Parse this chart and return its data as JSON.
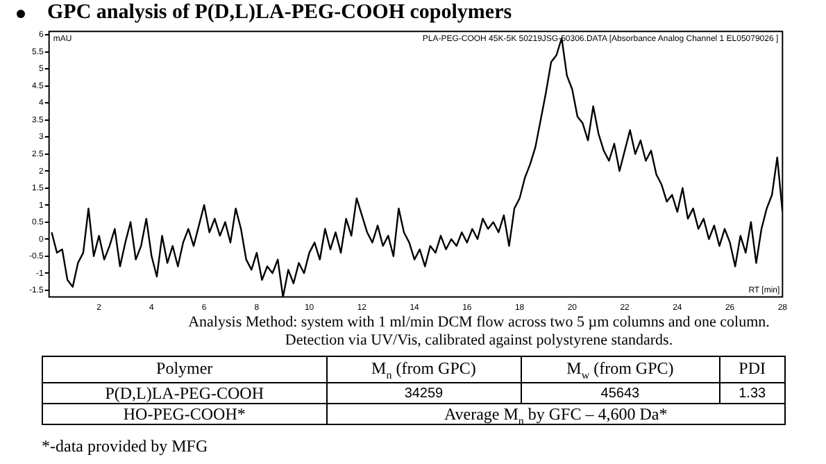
{
  "chart_data": {
    "type": "line",
    "title": "GPC analysis of P(D,L)LA-PEG-COOH copolymers",
    "xlabel": "RT [min]",
    "ylabel": "mAU",
    "annotations": [
      "PLA-PEG-COOH 45K-5K 50219JSG-50306.DATA [Absorbance Analog Channel 1 EL05079026 ]",
      "Analysis Method: system with 1 ml/min DCM flow across two 5 µm columns and one column. Detection via UV/Vis, calibrated against polystyrene standards.",
      "Polymer",
      "M$_{n}$ (from GPC)",
      "M$_{w}$ (from GPC)",
      "PDI",
      "P(D,L)LA-PEG-COOH",
      "34259",
      "45643",
      "1.33",
      "HO-PEG-COOH*",
      "Average M$_{n}$ by GFC –  4,600 Da*",
      "*-data provided by MFG"
    ],
    "x": [
      0.2,
      0.4,
      0.6,
      0.8,
      1.0,
      1.2,
      1.4,
      1.6,
      1.8,
      2.0,
      2.2,
      2.4,
      2.6,
      2.8,
      3.0,
      3.2,
      3.4,
      3.6,
      3.8,
      4.0,
      4.2,
      4.4,
      4.6,
      4.8,
      5.0,
      5.2,
      5.4,
      5.6,
      5.8,
      6.0,
      6.2,
      6.4,
      6.6,
      6.8,
      7.0,
      7.2,
      7.4,
      7.6,
      7.8,
      8.0,
      8.2,
      8.4,
      8.6,
      8.8,
      9.0,
      9.2,
      9.4,
      9.6,
      9.8,
      10.0,
      10.2,
      10.4,
      10.6,
      10.8,
      11.0,
      11.2,
      11.4,
      11.6,
      11.8,
      12.0,
      12.2,
      12.4,
      12.6,
      12.8,
      13.0,
      13.2,
      13.4,
      13.6,
      13.8,
      14.0,
      14.2,
      14.4,
      14.6,
      14.8,
      15.0,
      15.2,
      15.4,
      15.6,
      15.8,
      16.0,
      16.2,
      16.4,
      16.6,
      16.8,
      17.0,
      17.2,
      17.4,
      17.6,
      17.8,
      18.0,
      18.2,
      18.4,
      18.6,
      18.8,
      19.0,
      19.2,
      19.4,
      19.6,
      19.8,
      20.0,
      20.2,
      20.4,
      20.6,
      20.8,
      21.0,
      21.2,
      21.4,
      21.6,
      21.8,
      22.0,
      22.2,
      22.4,
      22.6,
      22.8,
      23.0,
      23.2,
      23.4,
      23.6,
      23.8,
      24.0,
      24.2,
      24.4,
      24.6,
      24.8,
      25.0,
      25.2,
      25.4,
      25.6,
      25.8,
      26.0,
      26.2,
      26.4,
      26.6,
      26.8,
      27.0,
      27.2,
      27.4,
      27.6,
      27.8,
      28.0
    ],
    "series": [
      {
        "color": "#000000",
        "values": [
          0.2,
          -0.4,
          -0.3,
          -1.2,
          -1.4,
          -0.7,
          -0.4,
          0.9,
          -0.5,
          0.1,
          -0.6,
          -0.2,
          0.3,
          -0.8,
          -0.1,
          0.5,
          -0.6,
          -0.2,
          0.6,
          -0.5,
          -1.1,
          0.1,
          -0.7,
          -0.2,
          -0.8,
          -0.1,
          0.3,
          -0.2,
          0.4,
          1.0,
          0.2,
          0.6,
          0.1,
          0.5,
          -0.1,
          0.9,
          0.3,
          -0.6,
          -0.9,
          -0.4,
          -1.2,
          -0.8,
          -1.0,
          -0.6,
          -1.7,
          -0.9,
          -1.3,
          -0.7,
          -1.0,
          -0.4,
          -0.1,
          -0.6,
          0.3,
          -0.3,
          0.2,
          -0.4,
          0.6,
          0.1,
          1.2,
          0.7,
          0.2,
          -0.1,
          0.4,
          -0.2,
          0.1,
          -0.5,
          0.9,
          0.2,
          -0.1,
          -0.6,
          -0.3,
          -0.8,
          -0.2,
          -0.4,
          0.1,
          -0.3,
          0.0,
          -0.2,
          0.2,
          -0.1,
          0.3,
          0.0,
          0.6,
          0.3,
          0.5,
          0.2,
          0.7,
          -0.2,
          0.9,
          1.2,
          1.8,
          2.2,
          2.7,
          3.5,
          4.3,
          5.2,
          5.4,
          5.9,
          4.8,
          4.4,
          3.6,
          3.4,
          2.9,
          3.9,
          3.1,
          2.6,
          2.3,
          2.8,
          2.0,
          2.6,
          3.2,
          2.5,
          2.9,
          2.3,
          2.6,
          1.9,
          1.6,
          1.1,
          1.3,
          0.8,
          1.5,
          0.6,
          0.9,
          0.3,
          0.6,
          0.0,
          0.4,
          -0.2,
          0.3,
          -0.1,
          -0.8,
          0.1,
          -0.4,
          0.5,
          -0.7,
          0.3,
          0.9,
          1.3,
          2.4,
          0.8
        ]
      }
    ],
    "xlim": [
      0.1,
      28
    ],
    "xticks": [
      2,
      4,
      6,
      8,
      10,
      12,
      14,
      16,
      18,
      20,
      22,
      24,
      26,
      28
    ],
    "ylim": [
      -1.7,
      6.1
    ],
    "yticks": [
      -1.5,
      -1,
      -0.5,
      0,
      0.5,
      1,
      1.5,
      2,
      2.5,
      3,
      3.5,
      4,
      4.5,
      5,
      5.5,
      6
    ],
    "grid": false,
    "legend": false,
    "line_style": "solid"
  }
}
